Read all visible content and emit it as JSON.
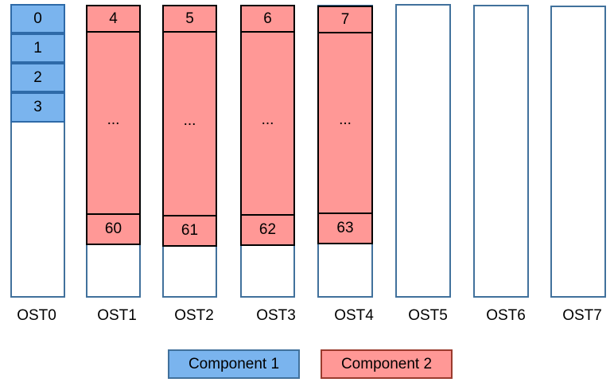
{
  "osts": [
    {
      "label": "OST0"
    },
    {
      "label": "OST1"
    },
    {
      "label": "OST2"
    },
    {
      "label": "OST3"
    },
    {
      "label": "OST4"
    },
    {
      "label": "OST5"
    },
    {
      "label": "OST6"
    },
    {
      "label": "OST7"
    }
  ],
  "component1_blocks": [
    "0",
    "1",
    "2",
    "3"
  ],
  "component2_columns": [
    {
      "top": "4",
      "middle": "...",
      "bottom": "60"
    },
    {
      "top": "5",
      "middle": "...",
      "bottom": "61"
    },
    {
      "top": "6",
      "middle": "...",
      "bottom": "62"
    },
    {
      "top": "7",
      "middle": "...",
      "bottom": "63"
    }
  ],
  "legend": {
    "component1": "Component 1",
    "component2": "Component 2"
  },
  "colors": {
    "component1_fill": "#7ab4ee",
    "component2_fill": "#ff9896",
    "ost_border": "#41719c"
  }
}
